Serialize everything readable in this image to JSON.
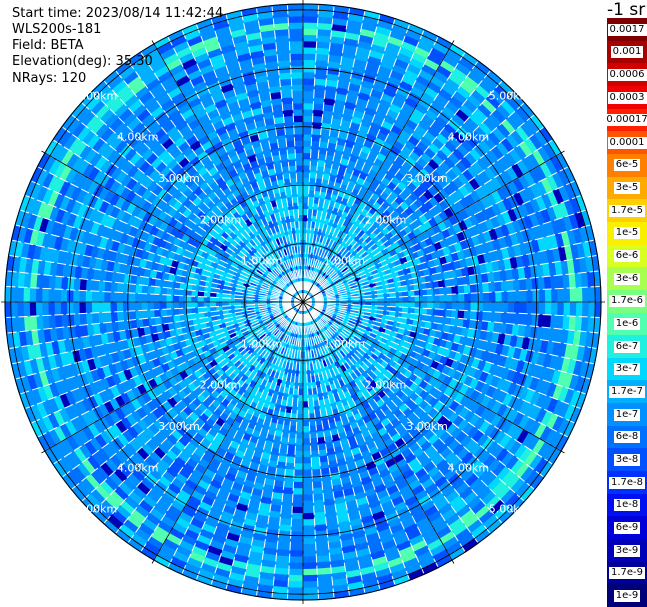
{
  "info": {
    "start_time": "Start time: 2023/08/14 11:42:44",
    "instrument": "WLS200s-181",
    "field": "Field: BETA",
    "elevation": "Elevation(deg): 35.30",
    "nrays": "NRays: 120"
  },
  "colorbar": {
    "unit": "-1 sr",
    "segments": [
      {
        "label": "0.0017",
        "color": "#800000"
      },
      {
        "label": "0.001",
        "color": "#a80000"
      },
      {
        "label": "0.0006",
        "color": "#d00000"
      },
      {
        "label": "0.0003",
        "color": "#f00000"
      },
      {
        "label": "0.00017",
        "color": "#ff2000"
      },
      {
        "label": "0.0001",
        "color": "#ff5500"
      },
      {
        "label": "6e-5",
        "color": "#ff8000"
      },
      {
        "label": "3e-5",
        "color": "#ffaa00"
      },
      {
        "label": "1.7e-5",
        "color": "#ffd000"
      },
      {
        "label": "1e-5",
        "color": "#f8f000"
      },
      {
        "label": "6e-6",
        "color": "#d8ff20"
      },
      {
        "label": "3e-6",
        "color": "#a8ff50"
      },
      {
        "label": "1.7e-6",
        "color": "#78ff80"
      },
      {
        "label": "1e-6",
        "color": "#50ffb0"
      },
      {
        "label": "6e-7",
        "color": "#20f0e0"
      },
      {
        "label": "3e-7",
        "color": "#00d8ff"
      },
      {
        "label": "1.7e-7",
        "color": "#00b0ff"
      },
      {
        "label": "1e-7",
        "color": "#0090ff"
      },
      {
        "label": "6e-8",
        "color": "#0070ff"
      },
      {
        "label": "3e-8",
        "color": "#0050ff"
      },
      {
        "label": "1.7e-8",
        "color": "#0030ff"
      },
      {
        "label": "1e-8",
        "color": "#0010f0"
      },
      {
        "label": "6e-9",
        "color": "#0000d8"
      },
      {
        "label": "3e-9",
        "color": "#0000b8"
      },
      {
        "label": "1.7e-9",
        "color": "#000098"
      },
      {
        "label": "1e-9",
        "color": "#000078"
      }
    ]
  },
  "chart_data": {
    "type": "heatmap",
    "projection": "polar-ppi",
    "field": "BETA",
    "elevation_deg": 35.3,
    "n_rays": 120,
    "range_rings_km": [
      1,
      2,
      3,
      4,
      5
    ],
    "max_range_km": 5.1,
    "range_labels": [
      "1.00km",
      "2.00km",
      "3.00km",
      "4.00km",
      "5.00km"
    ],
    "azimuth_lines_deg": [
      0,
      30,
      60,
      90,
      120,
      150,
      180,
      210,
      240,
      270,
      300,
      330
    ],
    "label_azimuths_deg": [
      45,
      135,
      225,
      315
    ],
    "dominant_level": "1e-7",
    "features": [
      {
        "type": "ring",
        "level": "1e-6",
        "range_km": 4.7,
        "description": "enhanced backscatter band"
      }
    ],
    "color_scale": "log",
    "grid": true
  }
}
